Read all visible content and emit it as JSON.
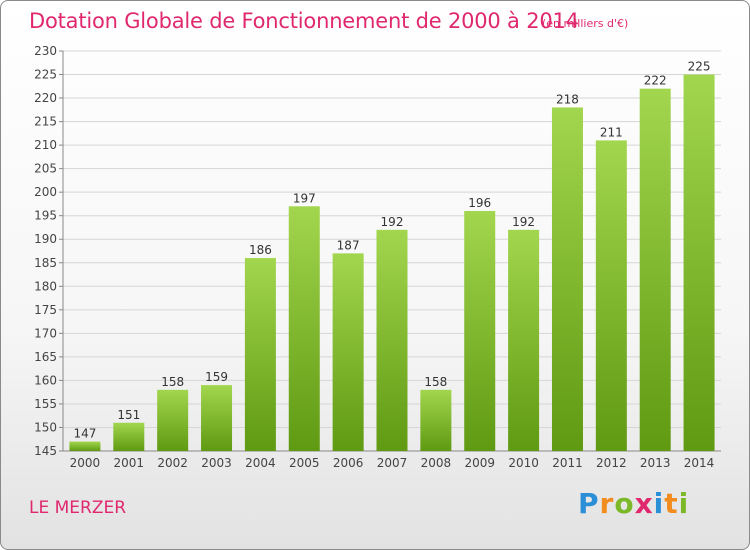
{
  "title": "Dotation Globale de Fonctionnement de 2000 à 2014",
  "subtitle": "(en milliers d'€)",
  "commune": "LE MERZER",
  "logo": {
    "letters": [
      "P",
      "r",
      "o",
      "x",
      "i",
      "t",
      "i"
    ],
    "colors": [
      "#2a8fd6",
      "#f28c1e",
      "#7bb928",
      "#e0286e",
      "#2a8fd6",
      "#f28c1e",
      "#7bb928"
    ]
  },
  "colors": {
    "bar_top": "#a2d64e",
    "bar_bottom": "#5f9a12",
    "title": "#e0286e"
  },
  "chart_data": {
    "type": "bar",
    "categories": [
      "2000",
      "2001",
      "2002",
      "2003",
      "2004",
      "2005",
      "2006",
      "2007",
      "2008",
      "2009",
      "2010",
      "2011",
      "2012",
      "2013",
      "2014"
    ],
    "values": [
      147,
      151,
      158,
      159,
      186,
      197,
      187,
      192,
      158,
      196,
      192,
      218,
      211,
      222,
      225
    ],
    "ylim": [
      145,
      230
    ],
    "yticks": [
      145,
      150,
      155,
      160,
      165,
      170,
      175,
      180,
      185,
      190,
      195,
      200,
      205,
      210,
      215,
      220,
      225,
      230
    ],
    "grid": true,
    "legend": "none"
  }
}
